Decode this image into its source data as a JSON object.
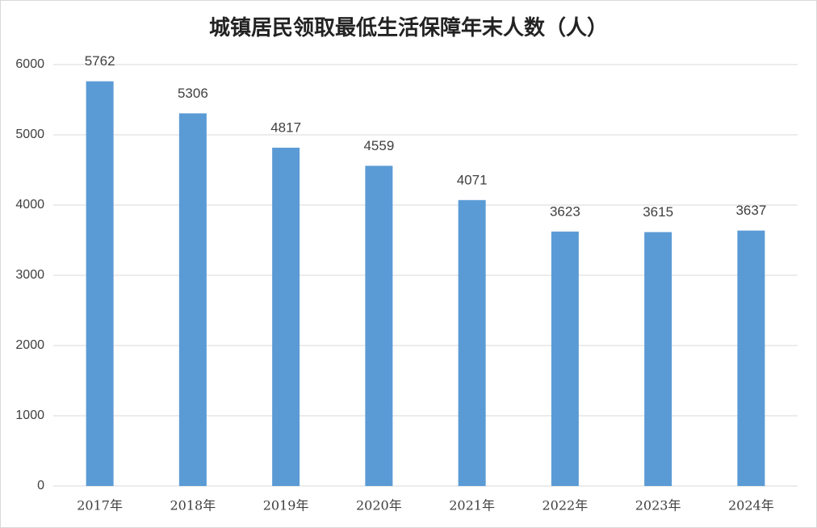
{
  "chart_data": {
    "type": "bar",
    "title": "城镇居民领取最低生活保障年末人数（人）",
    "categories": [
      "2017年",
      "2018年",
      "2019年",
      "2020年",
      "2021年",
      "2022年",
      "2023年",
      "2024年"
    ],
    "values": [
      5762,
      5306,
      4817,
      4559,
      4071,
      3623,
      3615,
      3637
    ],
    "color": "#5b9bd5",
    "ylim": [
      0,
      6000
    ],
    "yticks": [
      0,
      1000,
      2000,
      3000,
      4000,
      5000,
      6000
    ],
    "grid": true
  }
}
